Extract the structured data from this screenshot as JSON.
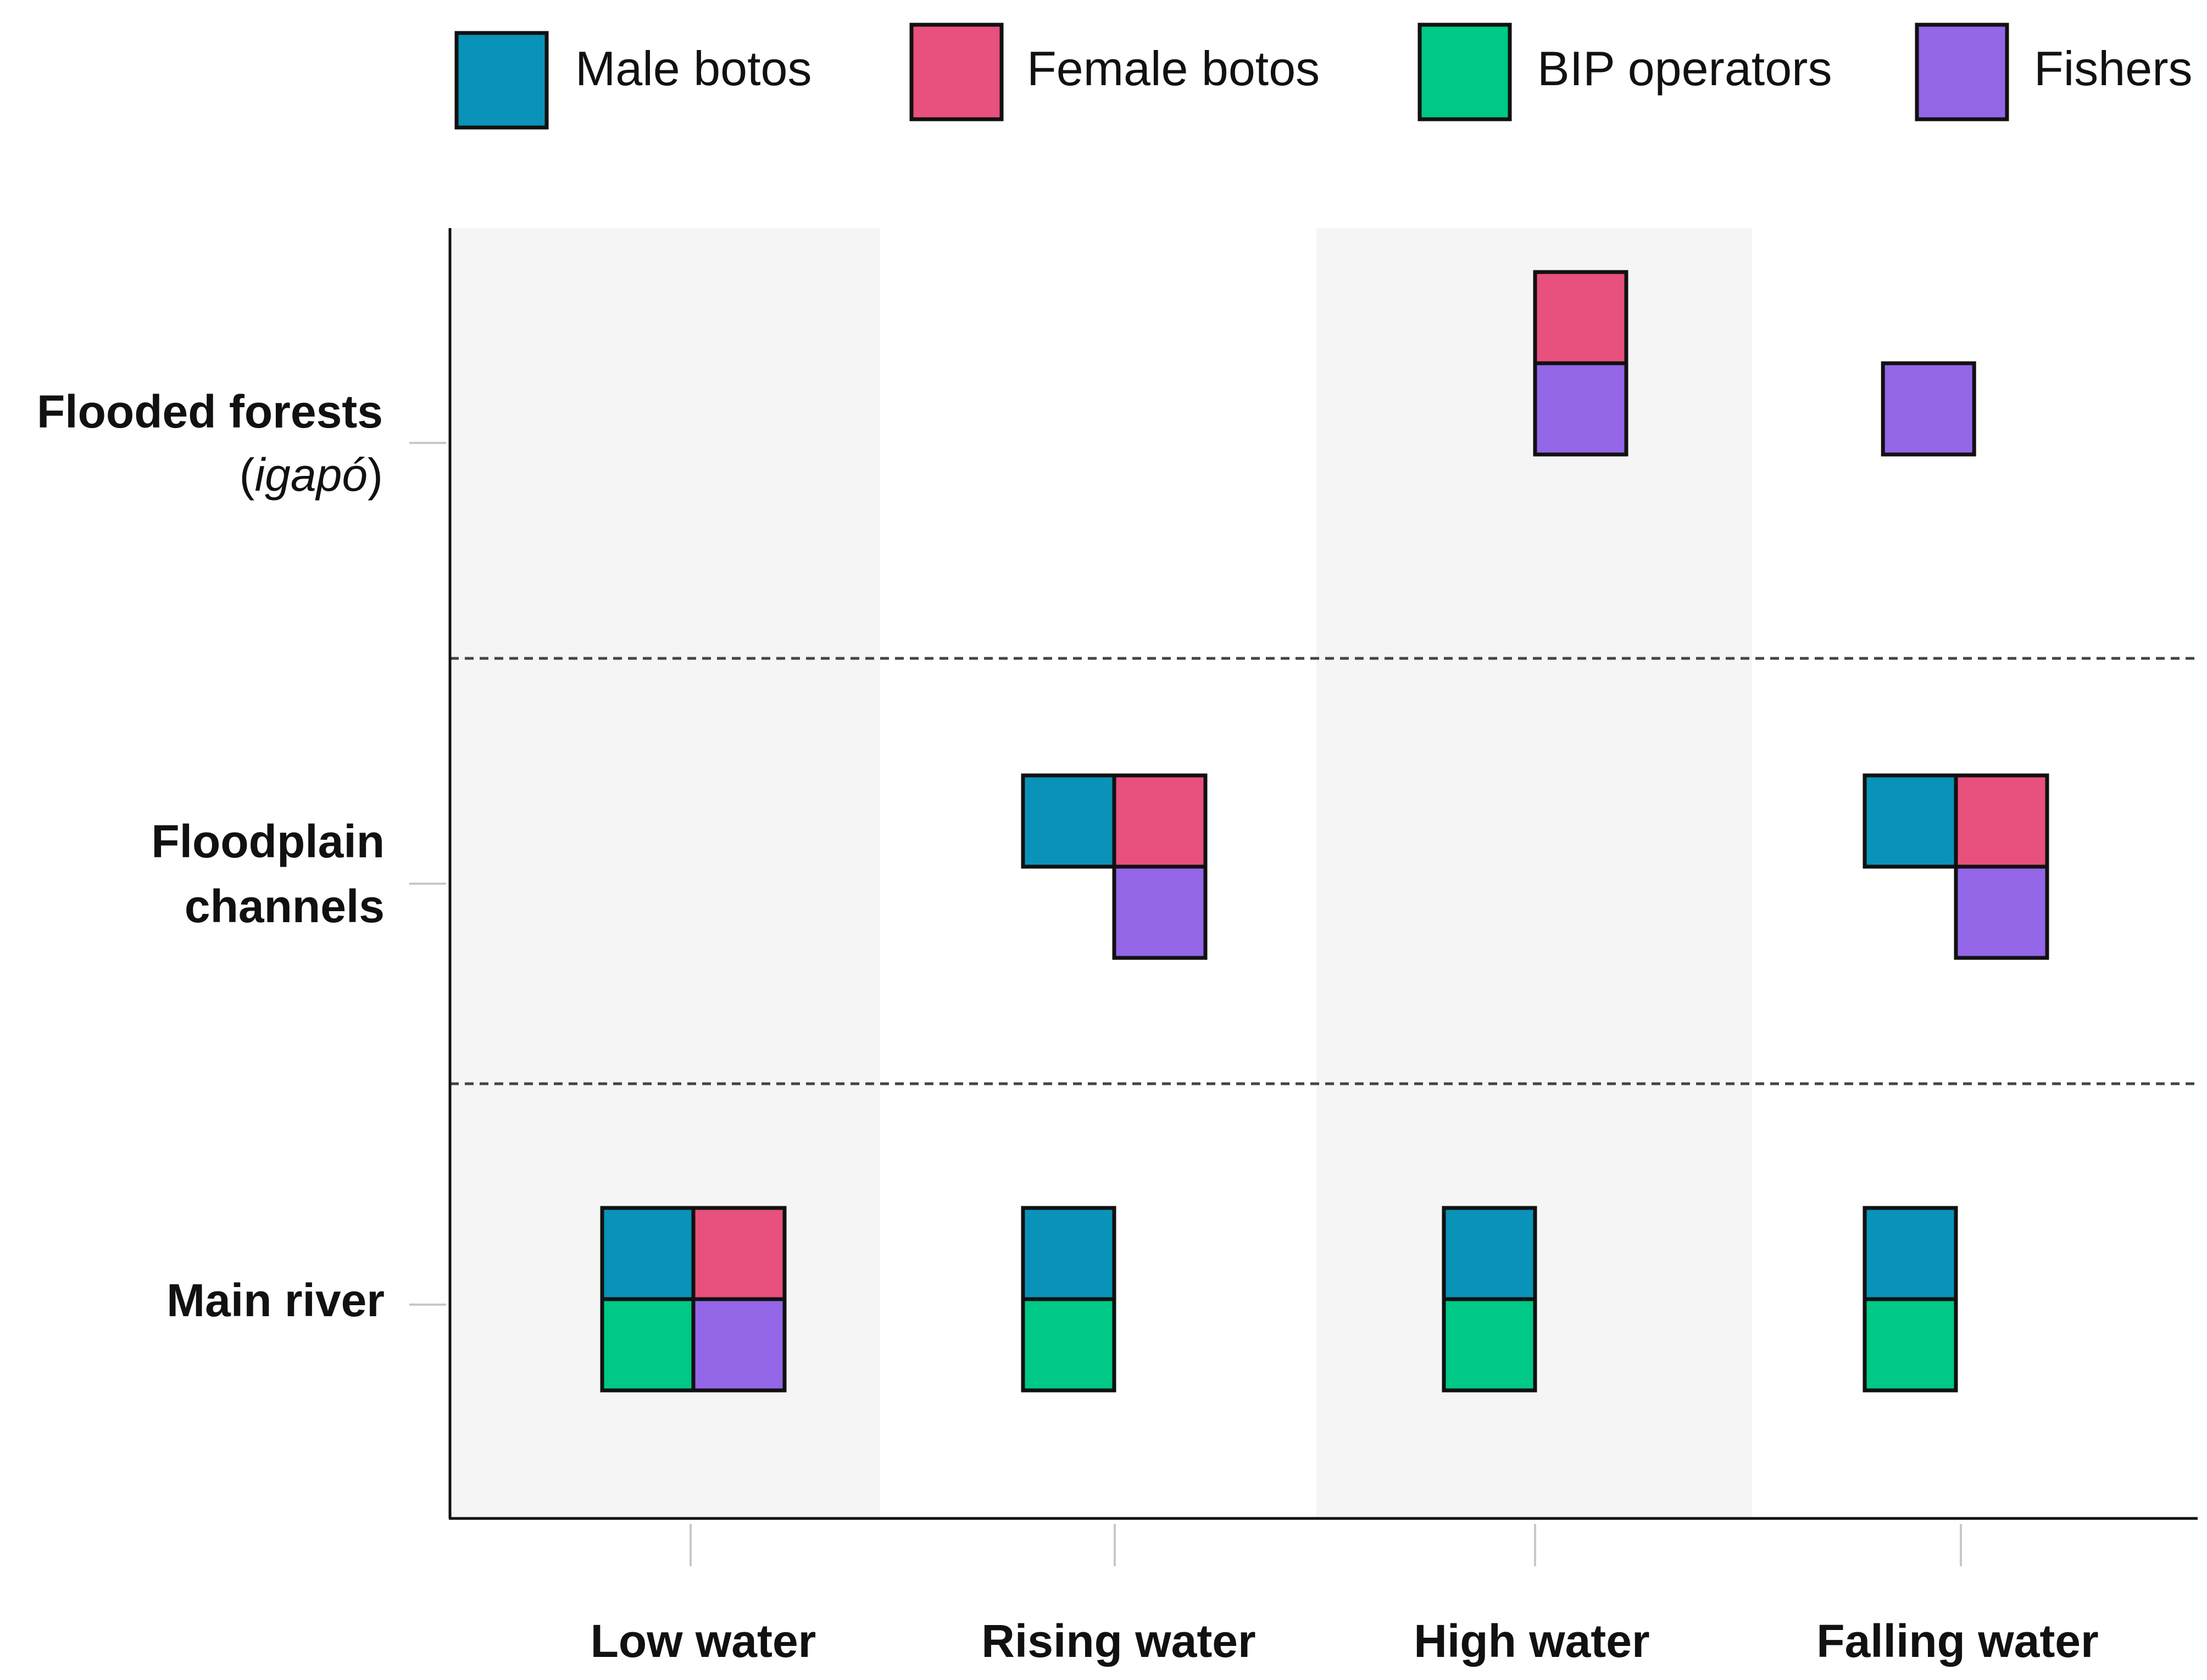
{
  "chart_data": {
    "type": "table",
    "title": "",
    "legend": [
      {
        "key": "male",
        "label": "Male botos",
        "color": "#0A93B8"
      },
      {
        "key": "female",
        "label": "Female botos",
        "color": "#E8507D"
      },
      {
        "key": "bip",
        "label": "BIP operators",
        "color": "#00C887"
      },
      {
        "key": "fishers",
        "label": "Fishers",
        "color": "#9466E8"
      }
    ],
    "legend_position": "top",
    "x_categories": [
      "Low water",
      "Rising water",
      "High water",
      "Falling water"
    ],
    "y_categories": [
      {
        "key": "forest",
        "label": "Flooded forests",
        "sublabel_open": "(",
        "sublabel_italic": "igapó",
        "sublabel_close": ")"
      },
      {
        "key": "channels",
        "label_line1": "Floodplain",
        "label_line2": "channels"
      },
      {
        "key": "river",
        "label": "Main river"
      }
    ],
    "presence": [
      {
        "habitat": "forest",
        "season": "High water",
        "groups": [
          "female",
          "fishers"
        ]
      },
      {
        "habitat": "forest",
        "season": "Falling water",
        "groups": [
          "fishers"
        ]
      },
      {
        "habitat": "channels",
        "season": "Rising water",
        "groups": [
          "male",
          "female",
          "fishers"
        ]
      },
      {
        "habitat": "channels",
        "season": "Falling water",
        "groups": [
          "male",
          "female",
          "fishers"
        ]
      },
      {
        "habitat": "river",
        "season": "Low water",
        "groups": [
          "male",
          "female",
          "bip",
          "fishers"
        ]
      },
      {
        "habitat": "river",
        "season": "Rising water",
        "groups": [
          "male",
          "bip"
        ]
      },
      {
        "habitat": "river",
        "season": "High water",
        "groups": [
          "male",
          "bip"
        ]
      },
      {
        "habitat": "river",
        "season": "Falling water",
        "groups": [
          "male",
          "bip"
        ]
      }
    ],
    "shaded_seasons": [
      "Low water",
      "High water"
    ],
    "row_separators": "dashed"
  }
}
